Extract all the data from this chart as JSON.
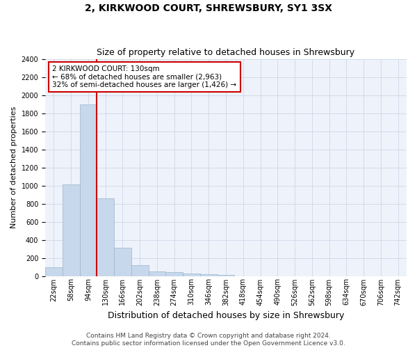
{
  "title": "2, KIRKWOOD COURT, SHREWSBURY, SY1 3SX",
  "subtitle": "Size of property relative to detached houses in Shrewsbury",
  "xlabel": "Distribution of detached houses by size in Shrewsbury",
  "ylabel": "Number of detached properties",
  "footer_line1": "Contains HM Land Registry data © Crown copyright and database right 2024.",
  "footer_line2": "Contains public sector information licensed under the Open Government Licence v3.0.",
  "bar_labels": [
    "22sqm",
    "58sqm",
    "94sqm",
    "130sqm",
    "166sqm",
    "202sqm",
    "238sqm",
    "274sqm",
    "310sqm",
    "346sqm",
    "382sqm",
    "418sqm",
    "454sqm",
    "490sqm",
    "526sqm",
    "562sqm",
    "598sqm",
    "634sqm",
    "670sqm",
    "706sqm",
    "742sqm"
  ],
  "bar_values": [
    100,
    1010,
    1900,
    860,
    310,
    120,
    50,
    40,
    30,
    20,
    10,
    0,
    0,
    0,
    0,
    0,
    0,
    0,
    0,
    0,
    0
  ],
  "bar_color": "#c8d8ec",
  "bar_edgecolor": "#9ab4cc",
  "property_line_index": 3,
  "annotation_text": "2 KIRKWOOD COURT: 130sqm\n← 68% of detached houses are smaller (2,963)\n32% of semi-detached houses are larger (1,426) →",
  "annotation_box_color": "#cc0000",
  "ylim": [
    0,
    2400
  ],
  "yticks": [
    0,
    200,
    400,
    600,
    800,
    1000,
    1200,
    1400,
    1600,
    1800,
    2000,
    2200,
    2400
  ],
  "grid_color": "#ccd8e8",
  "background_color": "#eef2fa",
  "title_fontsize": 10,
  "subtitle_fontsize": 9,
  "xlabel_fontsize": 9,
  "ylabel_fontsize": 8,
  "tick_fontsize": 7,
  "annotation_fontsize": 7.5,
  "footer_fontsize": 6.5
}
